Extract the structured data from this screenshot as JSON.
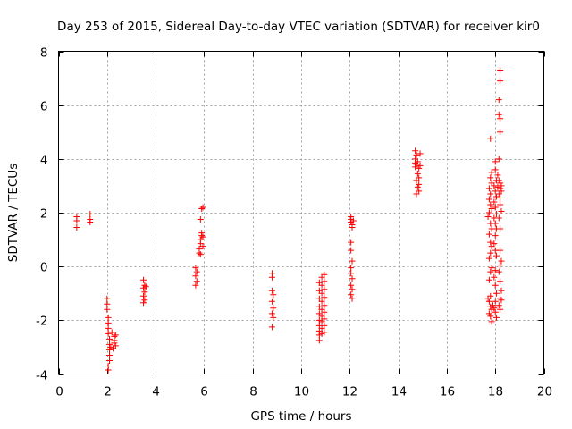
{
  "chart_data": {
    "type": "scatter",
    "title": "Day 253 of 2015, Sidereal Day-to-day VTEC variation (SDTVAR) for receiver kir0",
    "xlabel": "GPS time / hours",
    "ylabel": "SDTVAR / TECUs",
    "xlim": [
      0,
      20
    ],
    "ylim": [
      -4,
      8
    ],
    "xticks": [
      "0",
      "2",
      "4",
      "6",
      "8",
      "10",
      "12",
      "14",
      "16",
      "18",
      "20"
    ],
    "yticks": [
      "-4",
      "-2",
      "0",
      "2",
      "4",
      "6",
      "8"
    ],
    "grid": true,
    "marker": "+",
    "color": "#ff0000",
    "series": [
      {
        "name": "kir0",
        "points": [
          [
            0.75,
            1.85
          ],
          [
            0.75,
            1.7
          ],
          [
            0.75,
            1.45
          ],
          [
            1.3,
            1.95
          ],
          [
            1.3,
            1.75
          ],
          [
            1.3,
            1.65
          ],
          [
            2.0,
            -1.2
          ],
          [
            2.0,
            -1.4
          ],
          [
            2.0,
            -1.6
          ],
          [
            2.05,
            -1.9
          ],
          [
            2.05,
            -2.1
          ],
          [
            2.05,
            -2.3
          ],
          [
            2.05,
            -2.5
          ],
          [
            2.1,
            -2.7
          ],
          [
            2.1,
            -2.9
          ],
          [
            2.1,
            -3.1
          ],
          [
            2.1,
            -3.3
          ],
          [
            2.1,
            -3.5
          ],
          [
            2.05,
            -3.7
          ],
          [
            2.05,
            -3.85
          ],
          [
            2.2,
            -2.45
          ],
          [
            2.3,
            -2.6
          ],
          [
            2.3,
            -2.75
          ],
          [
            2.3,
            -2.85
          ],
          [
            2.35,
            -2.95
          ],
          [
            2.35,
            -2.55
          ],
          [
            2.25,
            -3.05
          ],
          [
            2.15,
            -3.0
          ],
          [
            3.5,
            -0.5
          ],
          [
            3.55,
            -0.7
          ],
          [
            3.5,
            -0.8
          ],
          [
            3.55,
            -0.95
          ],
          [
            3.5,
            -1.1
          ],
          [
            3.55,
            -1.25
          ],
          [
            3.5,
            -1.35
          ],
          [
            3.6,
            -0.75
          ],
          [
            5.65,
            -0.05
          ],
          [
            5.7,
            -0.2
          ],
          [
            5.65,
            -0.35
          ],
          [
            5.7,
            -0.55
          ],
          [
            5.65,
            -0.7
          ],
          [
            5.8,
            0.5
          ],
          [
            5.8,
            0.65
          ],
          [
            5.85,
            0.85
          ],
          [
            5.85,
            1.0
          ],
          [
            5.9,
            1.15
          ],
          [
            5.9,
            1.25
          ],
          [
            5.95,
            1.1
          ],
          [
            5.85,
            1.75
          ],
          [
            5.9,
            2.15
          ],
          [
            5.95,
            2.2
          ],
          [
            5.85,
            0.45
          ],
          [
            5.95,
            0.75
          ],
          [
            8.8,
            -0.25
          ],
          [
            8.8,
            -0.4
          ],
          [
            8.8,
            -0.9
          ],
          [
            8.85,
            -1.05
          ],
          [
            8.8,
            -1.3
          ],
          [
            8.8,
            -1.75
          ],
          [
            8.85,
            -1.9
          ],
          [
            8.8,
            -2.25
          ],
          [
            8.85,
            -1.55
          ],
          [
            10.75,
            -0.6
          ],
          [
            10.75,
            -0.9
          ],
          [
            10.75,
            -1.2
          ],
          [
            10.75,
            -1.5
          ],
          [
            10.75,
            -1.75
          ],
          [
            10.75,
            -2.0
          ],
          [
            10.75,
            -2.2
          ],
          [
            10.75,
            -2.4
          ],
          [
            10.75,
            -2.55
          ],
          [
            10.75,
            -2.75
          ],
          [
            10.85,
            -0.4
          ],
          [
            10.85,
            -0.7
          ],
          [
            10.85,
            -1.0
          ],
          [
            10.85,
            -1.3
          ],
          [
            10.85,
            -1.6
          ],
          [
            10.85,
            -1.85
          ],
          [
            10.85,
            -2.05
          ],
          [
            10.85,
            -2.3
          ],
          [
            10.85,
            -2.5
          ],
          [
            10.95,
            -0.3
          ],
          [
            10.95,
            -0.55
          ],
          [
            10.95,
            -0.85
          ],
          [
            10.95,
            -1.15
          ],
          [
            10.95,
            -1.45
          ],
          [
            10.95,
            -1.7
          ],
          [
            10.95,
            -1.95
          ],
          [
            10.95,
            -2.2
          ],
          [
            10.95,
            -2.45
          ],
          [
            12.05,
            1.85
          ],
          [
            12.05,
            1.75
          ],
          [
            12.05,
            1.65
          ],
          [
            12.1,
            1.55
          ],
          [
            12.1,
            1.45
          ],
          [
            12.05,
            0.9
          ],
          [
            12.05,
            0.6
          ],
          [
            12.1,
            0.2
          ],
          [
            12.05,
            -0.05
          ],
          [
            12.05,
            -0.25
          ],
          [
            12.1,
            -0.45
          ],
          [
            12.05,
            -0.7
          ],
          [
            12.1,
            -0.85
          ],
          [
            12.05,
            -1.05
          ],
          [
            12.1,
            -1.2
          ],
          [
            12.15,
            1.7
          ],
          [
            14.7,
            4.3
          ],
          [
            14.75,
            4.15
          ],
          [
            14.7,
            4.0
          ],
          [
            14.8,
            3.9
          ],
          [
            14.75,
            3.8
          ],
          [
            14.9,
            3.75
          ],
          [
            14.85,
            3.65
          ],
          [
            14.7,
            3.7
          ],
          [
            14.8,
            3.45
          ],
          [
            14.85,
            3.3
          ],
          [
            14.75,
            3.2
          ],
          [
            14.85,
            3.05
          ],
          [
            14.8,
            2.95
          ],
          [
            14.85,
            2.8
          ],
          [
            14.75,
            2.7
          ],
          [
            14.9,
            4.2
          ],
          [
            14.7,
            3.85
          ],
          [
            17.8,
            4.75
          ],
          [
            17.85,
            3.5
          ],
          [
            17.8,
            3.3
          ],
          [
            17.85,
            3.1
          ],
          [
            17.75,
            2.9
          ],
          [
            17.8,
            2.7
          ],
          [
            17.75,
            2.5
          ],
          [
            17.8,
            2.3
          ],
          [
            17.85,
            2.15
          ],
          [
            17.75,
            2.0
          ],
          [
            17.7,
            1.85
          ],
          [
            17.8,
            1.6
          ],
          [
            17.85,
            1.4
          ],
          [
            17.75,
            1.2
          ],
          [
            17.8,
            0.9
          ],
          [
            17.85,
            0.75
          ],
          [
            17.8,
            0.5
          ],
          [
            17.75,
            0.3
          ],
          [
            17.85,
            -0.05
          ],
          [
            17.8,
            -0.2
          ],
          [
            17.75,
            -0.5
          ],
          [
            17.8,
            -1.1
          ],
          [
            17.75,
            -1.3
          ],
          [
            17.8,
            -1.5
          ],
          [
            17.85,
            -1.6
          ],
          [
            17.75,
            -1.75
          ],
          [
            17.8,
            -1.85
          ],
          [
            17.85,
            -2.05
          ],
          [
            17.7,
            -1.2
          ],
          [
            17.9,
            -1.45
          ],
          [
            18.0,
            3.9
          ],
          [
            18.0,
            3.6
          ],
          [
            18.05,
            3.2
          ],
          [
            17.95,
            3.0
          ],
          [
            18.0,
            2.8
          ],
          [
            18.05,
            2.6
          ],
          [
            17.95,
            2.4
          ],
          [
            18.0,
            2.2
          ],
          [
            18.05,
            1.95
          ],
          [
            17.95,
            1.8
          ],
          [
            18.0,
            1.6
          ],
          [
            18.05,
            1.4
          ],
          [
            18.0,
            1.15
          ],
          [
            17.95,
            0.85
          ],
          [
            18.0,
            0.6
          ],
          [
            18.05,
            0.4
          ],
          [
            18.0,
            -0.15
          ],
          [
            17.95,
            -0.4
          ],
          [
            18.0,
            -0.7
          ],
          [
            18.05,
            -1.0
          ],
          [
            18.0,
            -1.3
          ],
          [
            17.95,
            -1.55
          ],
          [
            18.0,
            -1.7
          ],
          [
            18.05,
            -1.9
          ],
          [
            18.2,
            7.3
          ],
          [
            18.2,
            6.9
          ],
          [
            18.15,
            6.2
          ],
          [
            18.15,
            5.65
          ],
          [
            18.2,
            5.5
          ],
          [
            18.2,
            5.0
          ],
          [
            18.15,
            4.0
          ],
          [
            18.15,
            3.2
          ],
          [
            18.2,
            3.1
          ],
          [
            18.25,
            3.0
          ],
          [
            18.2,
            2.9
          ],
          [
            18.25,
            2.8
          ],
          [
            18.15,
            2.7
          ],
          [
            18.2,
            2.55
          ],
          [
            18.2,
            2.3
          ],
          [
            18.25,
            2.05
          ],
          [
            18.15,
            1.8
          ],
          [
            18.2,
            1.4
          ],
          [
            18.2,
            0.6
          ],
          [
            18.25,
            0.2
          ],
          [
            18.2,
            0.05
          ],
          [
            18.15,
            -0.2
          ],
          [
            18.2,
            -0.55
          ],
          [
            18.25,
            -0.9
          ],
          [
            18.2,
            -1.2
          ],
          [
            18.15,
            -1.45
          ],
          [
            18.2,
            -1.6
          ],
          [
            18.25,
            -1.25
          ],
          [
            18.1,
            2.95
          ],
          [
            18.1,
            3.4
          ]
        ]
      }
    ]
  }
}
